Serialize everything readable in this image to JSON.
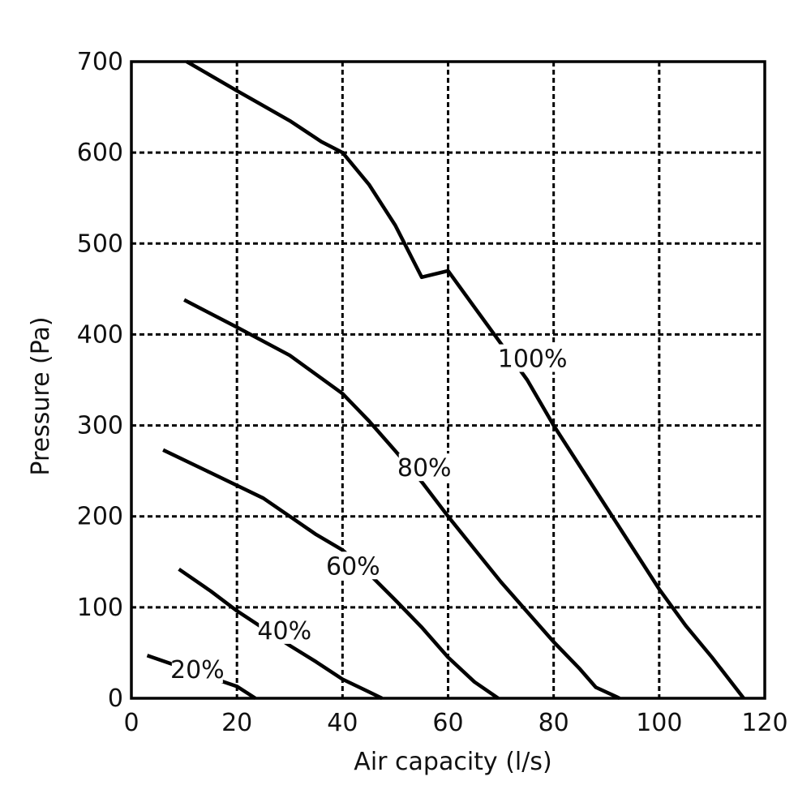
{
  "chart_data": {
    "type": "line",
    "xlabel": "Air capacity (l/s)",
    "ylabel": "Pressure (Pa)",
    "xlim": [
      0,
      120
    ],
    "ylim": [
      0,
      700
    ],
    "x_ticks": [
      "0",
      "20",
      "40",
      "60",
      "80",
      "100",
      "120"
    ],
    "y_ticks": [
      "0",
      "100",
      "200",
      "300",
      "400",
      "500",
      "600",
      "700"
    ],
    "grid": true,
    "grid_style": "dashed",
    "legend": "none",
    "series": [
      {
        "name": "100%",
        "x": [
          10.5,
          20,
          30,
          36,
          40,
          45,
          50,
          55,
          60,
          65,
          70,
          75,
          80,
          85,
          90,
          95,
          100,
          105,
          110,
          116
        ],
        "y": [
          700,
          668,
          635,
          612,
          600,
          565,
          520,
          463,
          470,
          430,
          390,
          350,
          300,
          255,
          210,
          165,
          120,
          80,
          45,
          0
        ]
      },
      {
        "name": "80%",
        "x": [
          10,
          20,
          30,
          40,
          45,
          50,
          55,
          60,
          65,
          70,
          75,
          80,
          85,
          88,
          92.5
        ],
        "y": [
          438,
          408,
          377,
          335,
          305,
          272,
          238,
          200,
          164,
          128,
          95,
          62,
          32,
          12,
          0
        ]
      },
      {
        "name": "60%",
        "x": [
          6,
          15,
          25,
          30,
          35,
          40,
          45,
          50,
          55,
          60,
          65,
          69.5
        ],
        "y": [
          273,
          248,
          220,
          200,
          180,
          163,
          137,
          108,
          78,
          45,
          18,
          0
        ]
      },
      {
        "name": "40%",
        "x": [
          9,
          15,
          20,
          25,
          30,
          35,
          40,
          45,
          47.5
        ],
        "y": [
          142,
          118,
          96,
          77,
          58,
          40,
          21,
          7,
          0
        ]
      },
      {
        "name": "20%",
        "x": [
          3,
          5,
          10,
          15,
          20,
          23.5
        ],
        "y": [
          47,
          43,
          33,
          23,
          13,
          0
        ]
      }
    ],
    "annotations": [
      {
        "text": "100%",
        "series": "100%",
        "x": 76,
        "y": 374
      },
      {
        "text": "80%",
        "series": "80%",
        "x": 55.5,
        "y": 254
      },
      {
        "text": "60%",
        "series": "60%",
        "x": 42,
        "y": 146
      },
      {
        "text": "40%",
        "series": "40%",
        "x": 29,
        "y": 75
      },
      {
        "text": "20%",
        "series": "20%",
        "x": 12.5,
        "y": 32
      }
    ]
  }
}
